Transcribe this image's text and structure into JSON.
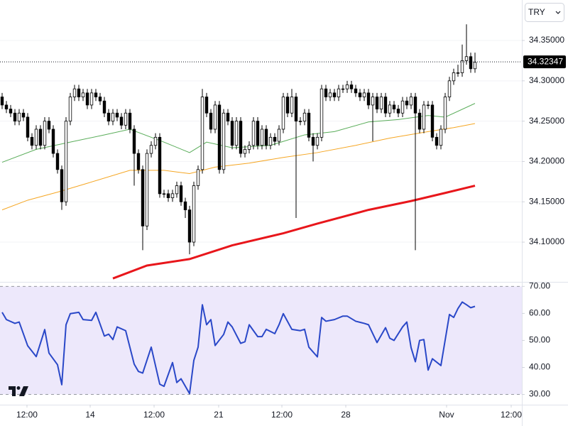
{
  "currency_selector": "TRY",
  "chart_data": [
    {
      "type": "candlestick",
      "up_color": "#ffffff",
      "down_color": "#000000",
      "wick_color": "#000000",
      "open": [
        34.28,
        34.27,
        34.265,
        34.26,
        34.25,
        34.26,
        34.255,
        34.23,
        34.22,
        34.24,
        34.22,
        34.25,
        34.24,
        34.21,
        34.19,
        34.15,
        34.25,
        34.28,
        34.29,
        34.28,
        34.285,
        34.27,
        34.285,
        34.28,
        34.275,
        34.26,
        34.25,
        34.26,
        34.255,
        34.245,
        34.26,
        34.24,
        34.21,
        34.19,
        34.12,
        34.21,
        34.22,
        34.23,
        34.16,
        34.16,
        34.155,
        34.16,
        34.17,
        34.15,
        34.14,
        34.1,
        34.17,
        34.19,
        34.28,
        34.26,
        34.24,
        34.27,
        34.19,
        34.26,
        34.25,
        34.22,
        34.25,
        34.21,
        34.215,
        34.22,
        34.25,
        34.22,
        34.24,
        34.22,
        34.23,
        34.225,
        34.24,
        34.28,
        34.26,
        34.28,
        34.25,
        34.25,
        34.26,
        34.23,
        34.22,
        34.23,
        34.29,
        34.28,
        34.285,
        34.28,
        34.29,
        34.29,
        34.295,
        34.29,
        34.285,
        34.28,
        34.285,
        34.27,
        34.28,
        34.265,
        34.28,
        34.26,
        34.27,
        34.265,
        34.26,
        34.275,
        34.27,
        34.28,
        34.26,
        34.24,
        34.27,
        34.27,
        34.23,
        34.22,
        34.24,
        34.28,
        34.3,
        34.31,
        34.31,
        34.325,
        34.33,
        34.315
      ],
      "high": [
        34.285,
        34.275,
        34.27,
        34.265,
        34.265,
        34.265,
        34.26,
        34.235,
        34.245,
        34.245,
        34.255,
        34.255,
        34.245,
        34.215,
        34.195,
        34.255,
        34.285,
        34.295,
        34.295,
        34.29,
        34.29,
        34.29,
        34.29,
        34.285,
        34.28,
        34.265,
        34.265,
        34.265,
        34.26,
        34.265,
        34.265,
        34.245,
        34.215,
        34.195,
        34.215,
        34.225,
        34.235,
        34.235,
        34.165,
        34.165,
        34.165,
        34.175,
        34.175,
        34.155,
        34.145,
        34.175,
        34.195,
        34.29,
        34.285,
        34.265,
        34.275,
        34.275,
        34.265,
        34.265,
        34.255,
        34.255,
        34.255,
        34.22,
        34.225,
        34.255,
        34.255,
        34.245,
        34.245,
        34.235,
        34.235,
        34.245,
        34.285,
        34.285,
        34.29,
        34.285,
        34.255,
        34.265,
        34.265,
        34.235,
        34.235,
        34.295,
        34.295,
        34.29,
        34.29,
        34.295,
        34.295,
        34.3,
        34.3,
        34.295,
        34.29,
        34.29,
        34.29,
        34.285,
        34.285,
        34.285,
        34.285,
        34.275,
        34.275,
        34.27,
        34.28,
        34.28,
        34.285,
        34.285,
        34.265,
        34.275,
        34.275,
        34.275,
        34.235,
        34.245,
        34.285,
        34.305,
        34.315,
        34.32,
        34.345,
        34.37,
        34.335,
        34.335
      ],
      "low": [
        34.265,
        34.26,
        34.255,
        34.245,
        34.245,
        34.25,
        34.225,
        34.215,
        34.215,
        34.215,
        34.215,
        34.235,
        34.205,
        34.185,
        34.14,
        34.145,
        34.245,
        34.275,
        34.275,
        34.275,
        34.265,
        34.265,
        34.275,
        34.27,
        34.255,
        34.245,
        34.245,
        34.25,
        34.24,
        34.24,
        34.235,
        34.17,
        34.185,
        34.09,
        34.115,
        34.205,
        34.215,
        34.155,
        34.155,
        34.15,
        34.15,
        34.155,
        34.145,
        34.13,
        34.085,
        34.095,
        34.165,
        34.185,
        34.255,
        34.235,
        34.235,
        34.185,
        34.185,
        34.245,
        34.215,
        34.215,
        34.205,
        34.205,
        34.21,
        34.215,
        34.215,
        34.215,
        34.215,
        34.215,
        34.22,
        34.22,
        34.235,
        34.255,
        34.255,
        34.13,
        34.245,
        34.245,
        34.225,
        34.2,
        34.215,
        34.225,
        34.275,
        34.275,
        34.275,
        34.275,
        34.285,
        34.285,
        34.285,
        34.28,
        34.275,
        34.275,
        34.265,
        34.225,
        34.26,
        34.26,
        34.255,
        34.255,
        34.26,
        34.255,
        34.255,
        34.265,
        34.265,
        34.09,
        34.235,
        34.235,
        34.265,
        34.225,
        34.215,
        34.215,
        34.235,
        34.275,
        34.295,
        34.305,
        34.305,
        34.32,
        34.31,
        34.31
      ],
      "close": [
        34.27,
        34.265,
        34.26,
        34.25,
        34.26,
        34.255,
        34.23,
        34.22,
        34.24,
        34.22,
        34.25,
        34.24,
        34.21,
        34.19,
        34.15,
        34.25,
        34.28,
        34.29,
        34.28,
        34.285,
        34.27,
        34.285,
        34.28,
        34.275,
        34.26,
        34.25,
        34.26,
        34.255,
        34.245,
        34.26,
        34.24,
        34.21,
        34.19,
        34.12,
        34.21,
        34.22,
        34.23,
        34.16,
        34.16,
        34.155,
        34.16,
        34.17,
        34.15,
        34.14,
        34.1,
        34.17,
        34.19,
        34.28,
        34.26,
        34.24,
        34.27,
        34.19,
        34.26,
        34.25,
        34.22,
        34.25,
        34.21,
        34.215,
        34.22,
        34.25,
        34.22,
        34.24,
        34.22,
        34.23,
        34.225,
        34.24,
        34.28,
        34.26,
        34.28,
        34.25,
        34.25,
        34.26,
        34.23,
        34.22,
        34.23,
        34.29,
        34.28,
        34.285,
        34.28,
        34.29,
        34.29,
        34.295,
        34.29,
        34.285,
        34.28,
        34.285,
        34.27,
        34.28,
        34.265,
        34.28,
        34.26,
        34.27,
        34.265,
        34.26,
        34.275,
        34.27,
        34.28,
        34.26,
        34.24,
        34.27,
        34.27,
        34.23,
        34.22,
        34.24,
        34.28,
        34.3,
        34.31,
        34.31,
        34.325,
        34.33,
        34.315,
        34.323
      ],
      "overlays": [
        {
          "color": "#5aad5a",
          "width": 1,
          "x": [
            0,
            8,
            16,
            24,
            30,
            38,
            44,
            48,
            54,
            63,
            71,
            78,
            86,
            93,
            100,
            104,
            111
          ],
          "values": [
            34.199,
            34.215,
            34.224,
            34.233,
            34.24,
            34.224,
            34.211,
            34.224,
            34.217,
            34.22,
            34.233,
            34.237,
            34.249,
            34.252,
            34.257,
            34.255,
            34.272
          ]
        },
        {
          "color": "#f5a623",
          "width": 1,
          "x": [
            0,
            6,
            13,
            20,
            30,
            38,
            44,
            50,
            58,
            66,
            74,
            83,
            91,
            100,
            106,
            111
          ],
          "values": [
            34.14,
            34.152,
            34.162,
            34.173,
            34.189,
            34.189,
            34.185,
            34.193,
            34.198,
            34.205,
            34.211,
            34.22,
            34.229,
            34.237,
            34.242,
            34.247
          ]
        },
        {
          "color": "#e8161b",
          "width": 3,
          "x": [
            26,
            34,
            44,
            54,
            66,
            74,
            86,
            96,
            104,
            111
          ],
          "values": [
            34.055,
            34.071,
            34.079,
            34.096,
            34.111,
            34.123,
            34.14,
            34.151,
            34.161,
            34.17
          ]
        }
      ],
      "last_price": {
        "value": 34.32347,
        "label": "34.32347"
      },
      "xlim": [
        -0.5,
        122
      ],
      "ylim": [
        34.0525,
        34.4002
      ],
      "yticks": [
        {
          "value": 34.1,
          "label": "34.10000"
        },
        {
          "value": 34.15,
          "label": "34.15000"
        },
        {
          "value": 34.2,
          "label": "34.20000"
        },
        {
          "value": 34.25,
          "label": "34.25000"
        },
        {
          "value": 34.3,
          "label": "34.30000"
        },
        {
          "value": 34.35,
          "label": "34.35000"
        }
      ],
      "grid": true
    },
    {
      "type": "line",
      "series": [
        {
          "color": "#2a48c8",
          "x": [
            0,
            1,
            3,
            4,
            6,
            8,
            10,
            11,
            13,
            14,
            15,
            16,
            18,
            19,
            21,
            22,
            24,
            25,
            26,
            27,
            29,
            31,
            32,
            33,
            35,
            37,
            38,
            40,
            41,
            42,
            44,
            45,
            46,
            47,
            48,
            49,
            50,
            52,
            53,
            54,
            56,
            57,
            58,
            60,
            61,
            62,
            64,
            65,
            66,
            68,
            70,
            71,
            72,
            74,
            75,
            76,
            78,
            80,
            81,
            83,
            85,
            86,
            88,
            90,
            91,
            92,
            94,
            95,
            96,
            97,
            98,
            99,
            100,
            101,
            103,
            105,
            106,
            107,
            108,
            109,
            110,
            111
          ],
          "values": [
            60.4,
            57.7,
            56.3,
            56.8,
            48,
            44,
            54,
            45.3,
            41,
            33.6,
            55.8,
            59.9,
            60.4,
            57.7,
            57.4,
            60.4,
            51.6,
            52.3,
            50.3,
            55,
            53.6,
            41.2,
            38.5,
            37.9,
            47.5,
            33.8,
            33,
            41.8,
            34.4,
            35.8,
            30.3,
            42.6,
            47.5,
            63.2,
            55.8,
            57.7,
            48.1,
            52.2,
            56.8,
            55,
            48.9,
            49.5,
            55.8,
            51.4,
            51.4,
            54.1,
            52.5,
            55.8,
            59.9,
            54.1,
            53.6,
            54.1,
            47.5,
            43.9,
            58.5,
            57.1,
            57.7,
            59,
            59,
            57.1,
            56.3,
            55.8,
            49.2,
            54.7,
            50.8,
            50,
            55,
            56.8,
            47.3,
            42.1,
            50,
            50.3,
            39,
            43.2,
            40.7,
            59.6,
            58.5,
            61.8,
            64.2,
            63.2,
            62.1,
            62.6
          ]
        }
      ],
      "band": {
        "from": 30,
        "to": 70,
        "color": "#ede8fb"
      },
      "xlim": [
        -0.5,
        122
      ],
      "ylim": [
        26.2,
        71.4
      ],
      "yticks": [
        {
          "value": 30,
          "label": "30.00"
        },
        {
          "value": 40,
          "label": "40.00"
        },
        {
          "value": 50,
          "label": "50.00"
        },
        {
          "value": 60,
          "label": "60.00"
        },
        {
          "value": 70,
          "label": "70.00"
        }
      ],
      "xticks": [
        {
          "value": 5.83,
          "label": "12:00"
        },
        {
          "value": 20.67,
          "label": "14"
        },
        {
          "value": 35.67,
          "label": "12:00"
        },
        {
          "value": 50.83,
          "label": "21"
        },
        {
          "value": 65.67,
          "label": "12:00"
        },
        {
          "value": 80.67,
          "label": "28"
        },
        {
          "value": 104.33,
          "label": "Nov"
        },
        {
          "value": 119.5,
          "label": "12:00"
        }
      ]
    }
  ]
}
